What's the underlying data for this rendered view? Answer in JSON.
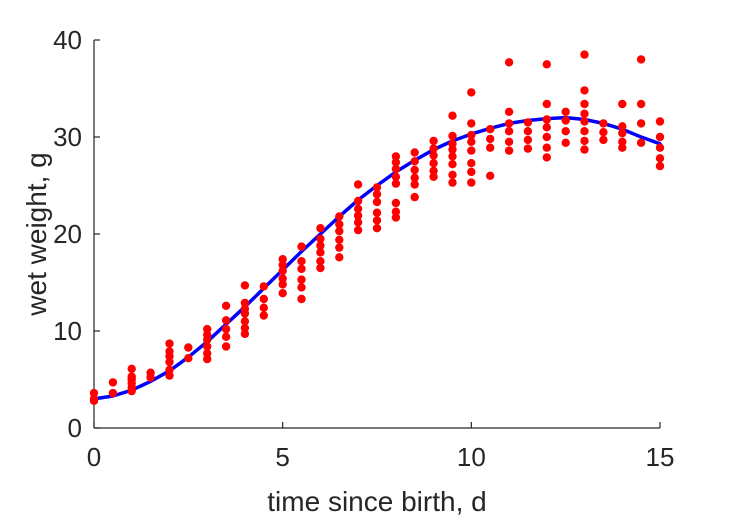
{
  "chart_data": {
    "type": "scatter",
    "title": "",
    "xlabel": "time since birth, d",
    "ylabel": "wet weight, g",
    "xlim": [
      0,
      15
    ],
    "ylim": [
      0,
      40
    ],
    "xticks": [
      0,
      5,
      10,
      15
    ],
    "yticks": [
      0,
      10,
      20,
      30,
      40
    ],
    "grid": false,
    "colors": {
      "points": "#ff0000",
      "fit": "#0000ff"
    },
    "series": [
      {
        "kind": "points",
        "points": [
          [
            0,
            2.8
          ],
          [
            0,
            3.0
          ],
          [
            0,
            3.6
          ],
          [
            0.5,
            3.6
          ],
          [
            0.5,
            4.7
          ],
          [
            1,
            3.8
          ],
          [
            1,
            4.2
          ],
          [
            1,
            4.6
          ],
          [
            1,
            5.0
          ],
          [
            1,
            5.3
          ],
          [
            1,
            6.1
          ],
          [
            1.5,
            5.2
          ],
          [
            1.5,
            5.7
          ],
          [
            2,
            5.4
          ],
          [
            2,
            6.0
          ],
          [
            2,
            6.8
          ],
          [
            2,
            7.4
          ],
          [
            2,
            7.9
          ],
          [
            2,
            8.7
          ],
          [
            2.5,
            7.2
          ],
          [
            2.5,
            8.3
          ],
          [
            3,
            7.1
          ],
          [
            3,
            7.7
          ],
          [
            3,
            8.4
          ],
          [
            3,
            9.1
          ],
          [
            3,
            9.6
          ],
          [
            3,
            10.2
          ],
          [
            3.5,
            8.4
          ],
          [
            3.5,
            9.4
          ],
          [
            3.5,
            10.2
          ],
          [
            3.5,
            11.1
          ],
          [
            3.5,
            12.6
          ],
          [
            4,
            9.7
          ],
          [
            4,
            10.3
          ],
          [
            4,
            11.0
          ],
          [
            4,
            11.8
          ],
          [
            4,
            12.3
          ],
          [
            4,
            12.9
          ],
          [
            4,
            14.7
          ],
          [
            4.5,
            11.6
          ],
          [
            4.5,
            12.4
          ],
          [
            4.5,
            13.3
          ],
          [
            4.5,
            14.6
          ],
          [
            5,
            13.9
          ],
          [
            5,
            14.8
          ],
          [
            5,
            15.4
          ],
          [
            5,
            16.2
          ],
          [
            5,
            16.8
          ],
          [
            5,
            17.4
          ],
          [
            5.5,
            13.3
          ],
          [
            5.5,
            14.5
          ],
          [
            5.5,
            15.3
          ],
          [
            5.5,
            16.4
          ],
          [
            5.5,
            17.2
          ],
          [
            5.5,
            18.7
          ],
          [
            6,
            16.5
          ],
          [
            6,
            17.2
          ],
          [
            6,
            18.1
          ],
          [
            6,
            18.8
          ],
          [
            6,
            19.5
          ],
          [
            6,
            20.6
          ],
          [
            6.5,
            17.6
          ],
          [
            6.5,
            18.6
          ],
          [
            6.5,
            19.4
          ],
          [
            6.5,
            20.3
          ],
          [
            6.5,
            21.0
          ],
          [
            6.5,
            21.8
          ],
          [
            7,
            20.4
          ],
          [
            7,
            21.2
          ],
          [
            7,
            21.9
          ],
          [
            7,
            22.6
          ],
          [
            7,
            23.4
          ],
          [
            7,
            25.1
          ],
          [
            7.5,
            20.6
          ],
          [
            7.5,
            21.4
          ],
          [
            7.5,
            22.2
          ],
          [
            7.5,
            23.3
          ],
          [
            7.5,
            24.1
          ],
          [
            7.5,
            24.8
          ],
          [
            8,
            21.7
          ],
          [
            8,
            22.3
          ],
          [
            8,
            23.2
          ],
          [
            8,
            25.2
          ],
          [
            8,
            25.9
          ],
          [
            8,
            26.7
          ],
          [
            8,
            27.4
          ],
          [
            8,
            28.0
          ],
          [
            8.5,
            23.8
          ],
          [
            8.5,
            25.1
          ],
          [
            8.5,
            25.8
          ],
          [
            8.5,
            26.6
          ],
          [
            8.5,
            27.5
          ],
          [
            8.5,
            28.4
          ],
          [
            9,
            25.9
          ],
          [
            9,
            26.5
          ],
          [
            9,
            27.3
          ],
          [
            9,
            28.1
          ],
          [
            9,
            28.8
          ],
          [
            9,
            29.6
          ],
          [
            9.5,
            25.3
          ],
          [
            9.5,
            26.1
          ],
          [
            9.5,
            27.2
          ],
          [
            9.5,
            28.0
          ],
          [
            9.5,
            28.7
          ],
          [
            9.5,
            29.3
          ],
          [
            9.5,
            30.1
          ],
          [
            9.5,
            32.2
          ],
          [
            10,
            25.3
          ],
          [
            10,
            26.4
          ],
          [
            10,
            27.3
          ],
          [
            10,
            28.6
          ],
          [
            10,
            29.5
          ],
          [
            10,
            30.2
          ],
          [
            10,
            31.4
          ],
          [
            10,
            34.6
          ],
          [
            10.5,
            26.0
          ],
          [
            10.5,
            28.9
          ],
          [
            10.5,
            29.8
          ],
          [
            10.5,
            30.8
          ],
          [
            11,
            28.6
          ],
          [
            11,
            29.5
          ],
          [
            11,
            30.6
          ],
          [
            11,
            31.4
          ],
          [
            11,
            32.6
          ],
          [
            11,
            37.7
          ],
          [
            11.5,
            28.8
          ],
          [
            11.5,
            29.7
          ],
          [
            11.5,
            30.6
          ],
          [
            11.5,
            31.5
          ],
          [
            12,
            27.9
          ],
          [
            12,
            28.9
          ],
          [
            12,
            30.0
          ],
          [
            12,
            31.0
          ],
          [
            12,
            31.8
          ],
          [
            12,
            33.4
          ],
          [
            12,
            37.5
          ],
          [
            12.5,
            29.4
          ],
          [
            12.5,
            30.6
          ],
          [
            12.5,
            31.7
          ],
          [
            12.5,
            32.6
          ],
          [
            13,
            28.7
          ],
          [
            13,
            29.6
          ],
          [
            13,
            30.6
          ],
          [
            13,
            31.6
          ],
          [
            13,
            32.4
          ],
          [
            13,
            33.4
          ],
          [
            13,
            34.8
          ],
          [
            13,
            38.5
          ],
          [
            13.5,
            29.7
          ],
          [
            13.5,
            30.5
          ],
          [
            13.5,
            31.4
          ],
          [
            14,
            28.9
          ],
          [
            14,
            29.5
          ],
          [
            14,
            30.4
          ],
          [
            14,
            31.1
          ],
          [
            14,
            33.4
          ],
          [
            14.5,
            29.4
          ],
          [
            14.5,
            31.4
          ],
          [
            14.5,
            33.4
          ],
          [
            14.5,
            38.0
          ],
          [
            15,
            27.0
          ],
          [
            15,
            27.8
          ],
          [
            15,
            28.9
          ],
          [
            15,
            30.0
          ],
          [
            15,
            31.6
          ]
        ]
      },
      {
        "kind": "fit",
        "x": [
          0,
          0.5,
          1,
          1.5,
          2,
          2.5,
          3,
          3.5,
          4,
          4.5,
          5,
          5.5,
          6,
          6.5,
          7,
          7.5,
          8,
          8.5,
          9,
          9.5,
          10,
          10.5,
          11,
          11.5,
          12,
          12.5,
          13,
          13.5,
          14,
          14.5,
          15
        ],
        "y": [
          3.0,
          3.3,
          3.9,
          4.8,
          5.9,
          7.3,
          8.9,
          10.7,
          12.5,
          14.4,
          16.3,
          18.2,
          20.0,
          21.8,
          23.5,
          25.0,
          26.4,
          27.6,
          28.7,
          29.6,
          30.3,
          30.9,
          31.4,
          31.7,
          31.9,
          32.0,
          31.8,
          31.4,
          30.8,
          30.0,
          29.3
        ]
      }
    ]
  }
}
